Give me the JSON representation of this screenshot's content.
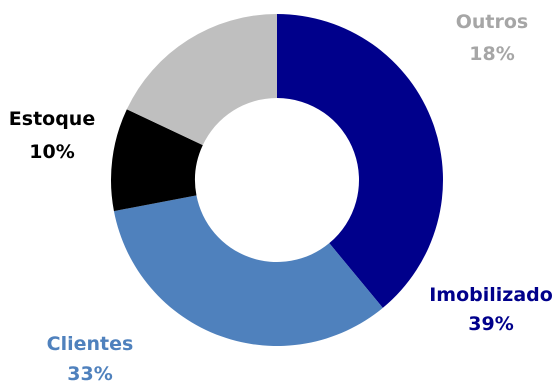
{
  "chart_data": {
    "type": "pie",
    "variant": "donut",
    "title": "",
    "slices": [
      {
        "name": "Imobilizado",
        "value": 39,
        "label": "39%",
        "color": "#00008B"
      },
      {
        "name": "Clientes",
        "value": 33,
        "label": "33%",
        "color": "#4F81BD"
      },
      {
        "name": "Estoque",
        "value": 10,
        "label": "10%",
        "color": "#000000"
      },
      {
        "name": "Outros",
        "value": 18,
        "label": "18%",
        "color": "#BFBFBF"
      }
    ],
    "start": "12 o'clock",
    "direction": "clockwise",
    "legend": "none",
    "label_colors": {
      "Imobilizado": "#00008B",
      "Clientes": "#4F81BD",
      "Estoque": "#000000",
      "Outros": "#A6A6A6"
    }
  }
}
